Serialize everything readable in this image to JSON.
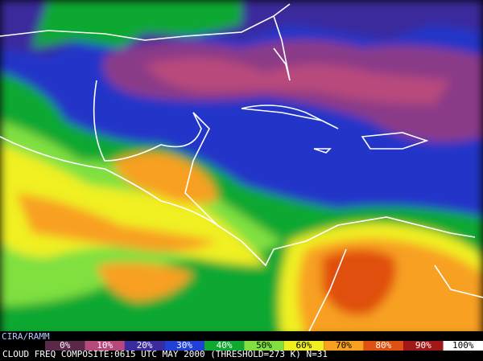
{
  "map": {
    "credit": "CIRA/RAMM",
    "caption": "CLOUD FREQ COMPOSITE:0615 UTC MAY 2000 (THRESHOLD=273 K) N=31",
    "legend": {
      "items": [
        {
          "label": "0%",
          "color": "#5a2848"
        },
        {
          "label": "10%",
          "color": "#b8487c"
        },
        {
          "label": "20%",
          "color": "#3a2c9c"
        },
        {
          "label": "30%",
          "color": "#2040d8"
        },
        {
          "label": "40%",
          "color": "#10a830"
        },
        {
          "label": "50%",
          "color": "#80e040"
        },
        {
          "label": "60%",
          "color": "#f0f020"
        },
        {
          "label": "70%",
          "color": "#f8a020"
        },
        {
          "label": "80%",
          "color": "#e05010"
        },
        {
          "label": "90%",
          "color": "#a01818"
        },
        {
          "label": "100%",
          "color": "#ffffff"
        }
      ]
    }
  }
}
